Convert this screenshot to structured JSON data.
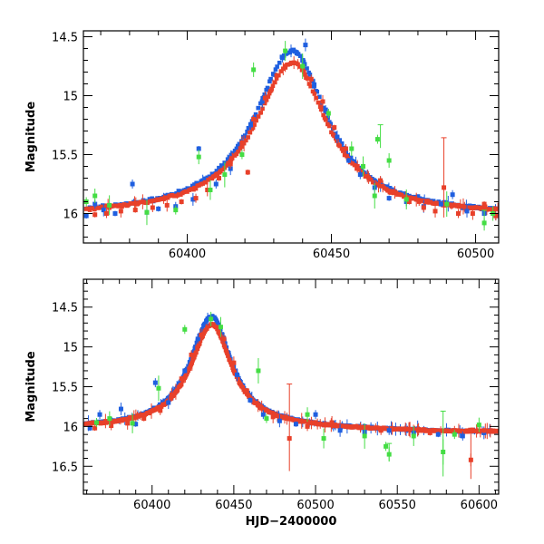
{
  "colors": {
    "blue": "#1f5fe0",
    "red": "#e8402a",
    "green": "#44dd44"
  },
  "chart_data": [
    {
      "type": "scatter",
      "title": "",
      "xlabel": "",
      "ylabel": "Magnitude",
      "xlim": [
        60364,
        60508
      ],
      "ylim": [
        16.25,
        14.45
      ],
      "y_inverted": true,
      "xticks": [
        60400,
        60450,
        60500
      ],
      "xtick_labels": [
        "60400",
        "60450",
        "60500"
      ],
      "yticks": [
        14.5,
        15,
        15.5,
        16
      ],
      "ytick_labels": [
        "14.5",
        "15",
        "15.5",
        "16"
      ],
      "grid": false,
      "legend": "none",
      "model": {
        "t0": 60436.5,
        "baseline": 16.02,
        "peak_blue": 14.62,
        "peak_red": 14.72,
        "tau_rise": 16,
        "tau_decay": 15
      },
      "series": [
        {
          "color_key": "blue",
          "points": [
            {
              "x": 60365,
              "y": 16.02
            },
            {
              "x": 60368,
              "y": 15.92
            },
            {
              "x": 60371,
              "y": 15.97
            },
            {
              "x": 60375,
              "y": 16.0
            },
            {
              "x": 60381,
              "y": 15.75
            },
            {
              "x": 60386,
              "y": 15.99
            },
            {
              "x": 60390,
              "y": 15.96
            },
            {
              "x": 60396,
              "y": 15.94
            },
            {
              "x": 60402,
              "y": 15.88
            },
            {
              "x": 60404,
              "y": 15.45
            },
            {
              "x": 60410,
              "y": 15.75
            },
            {
              "x": 60415,
              "y": 15.62
            },
            {
              "x": 60419,
              "y": 15.4
            },
            {
              "x": 60422,
              "y": 15.25
            },
            {
              "x": 60426,
              "y": 15.05
            },
            {
              "x": 60430,
              "y": 14.82
            },
            {
              "x": 60433,
              "y": 14.68
            },
            {
              "x": 60436,
              "y": 14.62
            },
            {
              "x": 60438,
              "y": 14.64
            },
            {
              "x": 60440,
              "y": 14.7
            },
            {
              "x": 60441,
              "y": 14.57
            },
            {
              "x": 60444,
              "y": 14.92
            },
            {
              "x": 60448,
              "y": 15.12
            },
            {
              "x": 60452,
              "y": 15.35
            },
            {
              "x": 60456,
              "y": 15.55
            },
            {
              "x": 60460,
              "y": 15.67
            },
            {
              "x": 60465,
              "y": 15.78
            },
            {
              "x": 60470,
              "y": 15.87
            },
            {
              "x": 60476,
              "y": 15.9
            },
            {
              "x": 60482,
              "y": 15.94
            },
            {
              "x": 60488,
              "y": 15.92
            },
            {
              "x": 60492,
              "y": 15.84
            },
            {
              "x": 60497,
              "y": 15.98
            },
            {
              "x": 60503,
              "y": 16.0
            },
            {
              "x": 60507,
              "y": 16.02
            }
          ]
        },
        {
          "color_key": "red",
          "points": [
            {
              "x": 60368,
              "y": 16.01
            },
            {
              "x": 60372,
              "y": 16.0
            },
            {
              "x": 60377,
              "y": 15.98
            },
            {
              "x": 60382,
              "y": 15.97
            },
            {
              "x": 60388,
              "y": 15.95
            },
            {
              "x": 60393,
              "y": 15.93
            },
            {
              "x": 60398,
              "y": 15.9
            },
            {
              "x": 60403,
              "y": 15.87
            },
            {
              "x": 60407,
              "y": 15.8
            },
            {
              "x": 60411,
              "y": 15.7
            },
            {
              "x": 60415,
              "y": 15.58
            },
            {
              "x": 60419,
              "y": 15.4
            },
            {
              "x": 60421,
              "y": 15.65
            },
            {
              "x": 60423,
              "y": 15.2
            },
            {
              "x": 60427,
              "y": 15.02
            },
            {
              "x": 60431,
              "y": 14.83
            },
            {
              "x": 60434,
              "y": 14.76
            },
            {
              "x": 60437,
              "y": 14.72
            },
            {
              "x": 60440,
              "y": 14.76
            },
            {
              "x": 60443,
              "y": 14.86
            },
            {
              "x": 60447,
              "y": 15.05
            },
            {
              "x": 60451,
              "y": 15.27
            },
            {
              "x": 60455,
              "y": 15.45
            },
            {
              "x": 60459,
              "y": 15.6
            },
            {
              "x": 60463,
              "y": 15.7
            },
            {
              "x": 60467,
              "y": 15.72
            },
            {
              "x": 60472,
              "y": 15.82
            },
            {
              "x": 60477,
              "y": 15.9
            },
            {
              "x": 60482,
              "y": 15.95
            },
            {
              "x": 60486,
              "y": 15.98
            },
            {
              "x": 60489,
              "y": 15.78
            },
            {
              "x": 60494,
              "y": 16.0
            },
            {
              "x": 60499,
              "y": 16.0
            },
            {
              "x": 60503,
              "y": 15.92
            },
            {
              "x": 60507,
              "y": 16.02
            }
          ]
        },
        {
          "color_key": "green",
          "points": [
            {
              "x": 60365,
              "y": 15.9
            },
            {
              "x": 60368,
              "y": 15.85
            },
            {
              "x": 60373,
              "y": 15.93
            },
            {
              "x": 60386,
              "y": 15.99
            },
            {
              "x": 60396,
              "y": 15.97
            },
            {
              "x": 60404,
              "y": 15.52
            },
            {
              "x": 60408,
              "y": 15.8
            },
            {
              "x": 60413,
              "y": 15.67
            },
            {
              "x": 60419,
              "y": 15.5
            },
            {
              "x": 60423,
              "y": 14.78
            },
            {
              "x": 60434,
              "y": 14.62
            },
            {
              "x": 60440,
              "y": 14.75
            },
            {
              "x": 60449,
              "y": 15.15
            },
            {
              "x": 60457,
              "y": 15.45
            },
            {
              "x": 60461,
              "y": 15.6
            },
            {
              "x": 60465,
              "y": 15.85
            },
            {
              "x": 60466,
              "y": 15.37
            },
            {
              "x": 60470,
              "y": 15.55
            },
            {
              "x": 60476,
              "y": 15.88
            },
            {
              "x": 60490,
              "y": 15.92
            },
            {
              "x": 60503,
              "y": 16.08
            },
            {
              "x": 60506,
              "y": 16.0
            }
          ]
        }
      ]
    },
    {
      "type": "scatter",
      "title": "",
      "xlabel": "HJD−2400000",
      "ylabel": "Magnitude",
      "xlim": [
        60358,
        60612
      ],
      "ylim": [
        16.85,
        14.15
      ],
      "y_inverted": true,
      "xticks": [
        60400,
        60450,
        60500,
        60550,
        60600
      ],
      "xtick_labels": [
        "60400",
        "60450",
        "60500",
        "60550",
        "60600"
      ],
      "yticks": [
        14.5,
        15,
        15.5,
        16,
        16.5
      ],
      "ytick_labels": [
        "14.5",
        "15",
        "15.5",
        "16",
        "16.5"
      ],
      "grid": false,
      "legend": "none",
      "model": {
        "t0": 60436.5,
        "baseline": 16.02,
        "peak_blue": 14.62,
        "peak_red": 14.72,
        "tau_rise": 16,
        "tau_decay": 15,
        "late_drift": 0.05
      },
      "series": [
        {
          "color_key": "blue",
          "points": [
            {
              "x": 60362,
              "y": 16.02
            },
            {
              "x": 60368,
              "y": 15.85
            },
            {
              "x": 60381,
              "y": 15.78
            },
            {
              "x": 60390,
              "y": 15.97
            },
            {
              "x": 60402,
              "y": 15.45
            },
            {
              "x": 60410,
              "y": 15.7
            },
            {
              "x": 60420,
              "y": 15.3
            },
            {
              "x": 60428,
              "y": 14.9
            },
            {
              "x": 60434,
              "y": 14.65
            },
            {
              "x": 60438,
              "y": 14.63
            },
            {
              "x": 60444,
              "y": 14.9
            },
            {
              "x": 60452,
              "y": 15.35
            },
            {
              "x": 60460,
              "y": 15.67
            },
            {
              "x": 60468,
              "y": 15.85
            },
            {
              "x": 60478,
              "y": 15.93
            },
            {
              "x": 60488,
              "y": 15.97
            },
            {
              "x": 60500,
              "y": 15.85
            },
            {
              "x": 60515,
              "y": 16.05
            },
            {
              "x": 60530,
              "y": 16.07
            },
            {
              "x": 60545,
              "y": 16.05
            },
            {
              "x": 60560,
              "y": 16.08
            },
            {
              "x": 60575,
              "y": 16.1
            },
            {
              "x": 60590,
              "y": 16.12
            },
            {
              "x": 60603,
              "y": 16.08
            }
          ]
        },
        {
          "color_key": "red",
          "points": [
            {
              "x": 60365,
              "y": 16.02
            },
            {
              "x": 60375,
              "y": 15.99
            },
            {
              "x": 60385,
              "y": 15.96
            },
            {
              "x": 60395,
              "y": 15.9
            },
            {
              "x": 60405,
              "y": 15.8
            },
            {
              "x": 60412,
              "y": 15.6
            },
            {
              "x": 60418,
              "y": 15.4
            },
            {
              "x": 60424,
              "y": 15.1
            },
            {
              "x": 60430,
              "y": 14.85
            },
            {
              "x": 60437,
              "y": 14.72
            },
            {
              "x": 60444,
              "y": 14.9
            },
            {
              "x": 60450,
              "y": 15.2
            },
            {
              "x": 60458,
              "y": 15.55
            },
            {
              "x": 60466,
              "y": 15.75
            },
            {
              "x": 60474,
              "y": 15.88
            },
            {
              "x": 60484,
              "y": 16.15
            },
            {
              "x": 60495,
              "y": 16.0
            },
            {
              "x": 60510,
              "y": 15.95
            },
            {
              "x": 60525,
              "y": 16.0
            },
            {
              "x": 60540,
              "y": 16.05
            },
            {
              "x": 60555,
              "y": 16.03
            },
            {
              "x": 60570,
              "y": 16.08
            },
            {
              "x": 60585,
              "y": 16.05
            },
            {
              "x": 60595,
              "y": 16.42
            },
            {
              "x": 60603,
              "y": 16.05
            }
          ]
        },
        {
          "color_key": "green",
          "points": [
            {
              "x": 60366,
              "y": 15.95
            },
            {
              "x": 60374,
              "y": 15.9
            },
            {
              "x": 60388,
              "y": 15.96
            },
            {
              "x": 60404,
              "y": 15.52
            },
            {
              "x": 60420,
              "y": 14.78
            },
            {
              "x": 60436,
              "y": 14.65
            },
            {
              "x": 60442,
              "y": 14.75
            },
            {
              "x": 60465,
              "y": 15.3
            },
            {
              "x": 60470,
              "y": 15.9
            },
            {
              "x": 60495,
              "y": 15.85
            },
            {
              "x": 60505,
              "y": 16.15
            },
            {
              "x": 60530,
              "y": 16.12
            },
            {
              "x": 60543,
              "y": 16.25
            },
            {
              "x": 60545,
              "y": 16.35
            },
            {
              "x": 60560,
              "y": 16.12
            },
            {
              "x": 60578,
              "y": 16.32
            },
            {
              "x": 60585,
              "y": 16.1
            },
            {
              "x": 60600,
              "y": 15.98
            }
          ]
        }
      ]
    }
  ]
}
